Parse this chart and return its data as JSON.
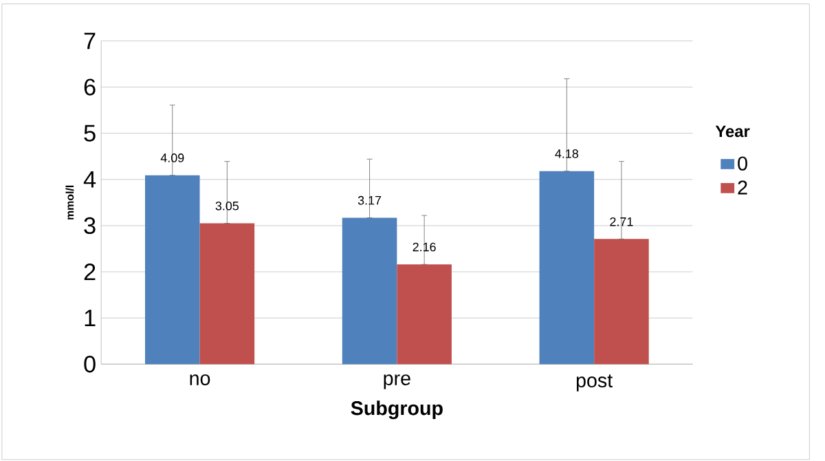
{
  "chart_data": {
    "type": "bar",
    "xlabel": "Subgroup",
    "ylabel": "mmol/l",
    "legend_title": "Year",
    "categories": [
      "no",
      "pre",
      "post"
    ],
    "series": [
      {
        "name": "0",
        "color": "#4f81bd",
        "values": [
          4.09,
          3.17,
          4.18
        ],
        "errors": [
          [
            4.09,
            5.61
          ],
          [
            3.17,
            4.44
          ],
          [
            4.18,
            6.18
          ]
        ]
      },
      {
        "name": "2",
        "color": "#c0504d",
        "values": [
          3.05,
          2.16,
          2.71
        ],
        "errors": [
          [
            3.05,
            4.39
          ],
          [
            2.16,
            3.22
          ],
          [
            2.71,
            4.39
          ]
        ]
      }
    ],
    "ylim": [
      0,
      7
    ],
    "yticks": [
      0,
      1,
      2,
      3,
      4,
      5,
      6,
      7
    ],
    "grid": "y",
    "legend": "right",
    "data_labels": true
  }
}
